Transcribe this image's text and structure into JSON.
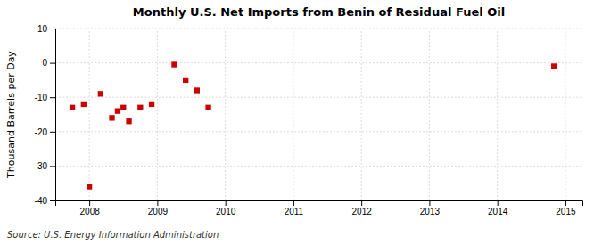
{
  "chart_data": {
    "type": "scatter",
    "title": "Monthly U.S. Net Imports from Benin of Residual Fuel Oil",
    "ylabel": "Thousand Barrels per Day",
    "source": "Source: U.S. Energy Information Administration",
    "x": [
      2007.75,
      2007.917,
      2008.0,
      2008.167,
      2008.333,
      2008.417,
      2008.5,
      2008.583,
      2008.75,
      2008.917,
      2009.25,
      2009.417,
      2009.583,
      2009.75,
      2014.833
    ],
    "values": [
      -13,
      -12,
      -36,
      -9,
      -16,
      -14,
      -13,
      -17,
      -13,
      -12,
      -0.5,
      -5,
      -8,
      -13,
      -1
    ],
    "color": "#cc0000",
    "marker": "square",
    "xlim": [
      2007.5,
      2015.25
    ],
    "ylim": [
      -40,
      10
    ],
    "xticks": [
      2008,
      2009,
      2010,
      2011,
      2012,
      2013,
      2014,
      2015
    ],
    "yticks": [
      10,
      0,
      -10,
      -20,
      -30,
      -40
    ],
    "grid": true
  }
}
